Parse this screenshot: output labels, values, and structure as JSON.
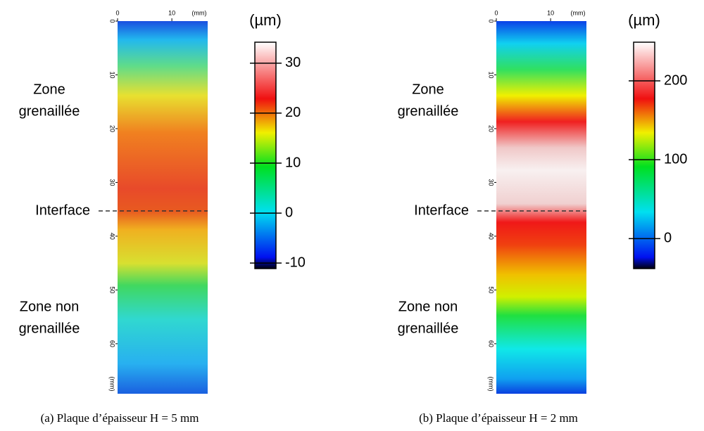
{
  "chart_data": [
    {
      "type": "heatmap",
      "caption": "(a) Plaque d’épaisseur H = 5 mm",
      "xticks": [
        0,
        10
      ],
      "xlim": [
        0,
        16.6
      ],
      "x_unit": "(mm)",
      "yticks": [
        0,
        10,
        20,
        30,
        40,
        50,
        60
      ],
      "ylim": [
        0,
        69.3
      ],
      "y_unit": "(mm)",
      "colorbar_label": "(µm)",
      "clim": [
        -11.1,
        34.2
      ],
      "cticks": [
        -10,
        0,
        10,
        20,
        30
      ],
      "zone_top": [
        "Zone",
        "grenaillée"
      ],
      "zone_bottom": [
        "Zone non",
        "grenaillée"
      ],
      "interface": {
        "label": "Interface",
        "y": 35.3
      }
    },
    {
      "type": "heatmap",
      "caption": "(b) Plaque d’épaisseur H = 2 mm",
      "xticks": [
        0,
        10
      ],
      "xlim": [
        0,
        16.6
      ],
      "x_unit": "(mm)",
      "yticks": [
        0,
        10,
        20,
        30,
        40,
        50,
        60
      ],
      "ylim": [
        0,
        69.3
      ],
      "y_unit": "(mm)",
      "colorbar_label": "(µm)",
      "clim": [
        -38,
        249
      ],
      "cticks": [
        0,
        100,
        200
      ],
      "zone_top": [
        "Zone",
        "grenaillée"
      ],
      "zone_bottom": [
        "Zone non",
        "grenaillée"
      ],
      "interface": {
        "label": "Interface",
        "y": 35.3
      }
    }
  ]
}
